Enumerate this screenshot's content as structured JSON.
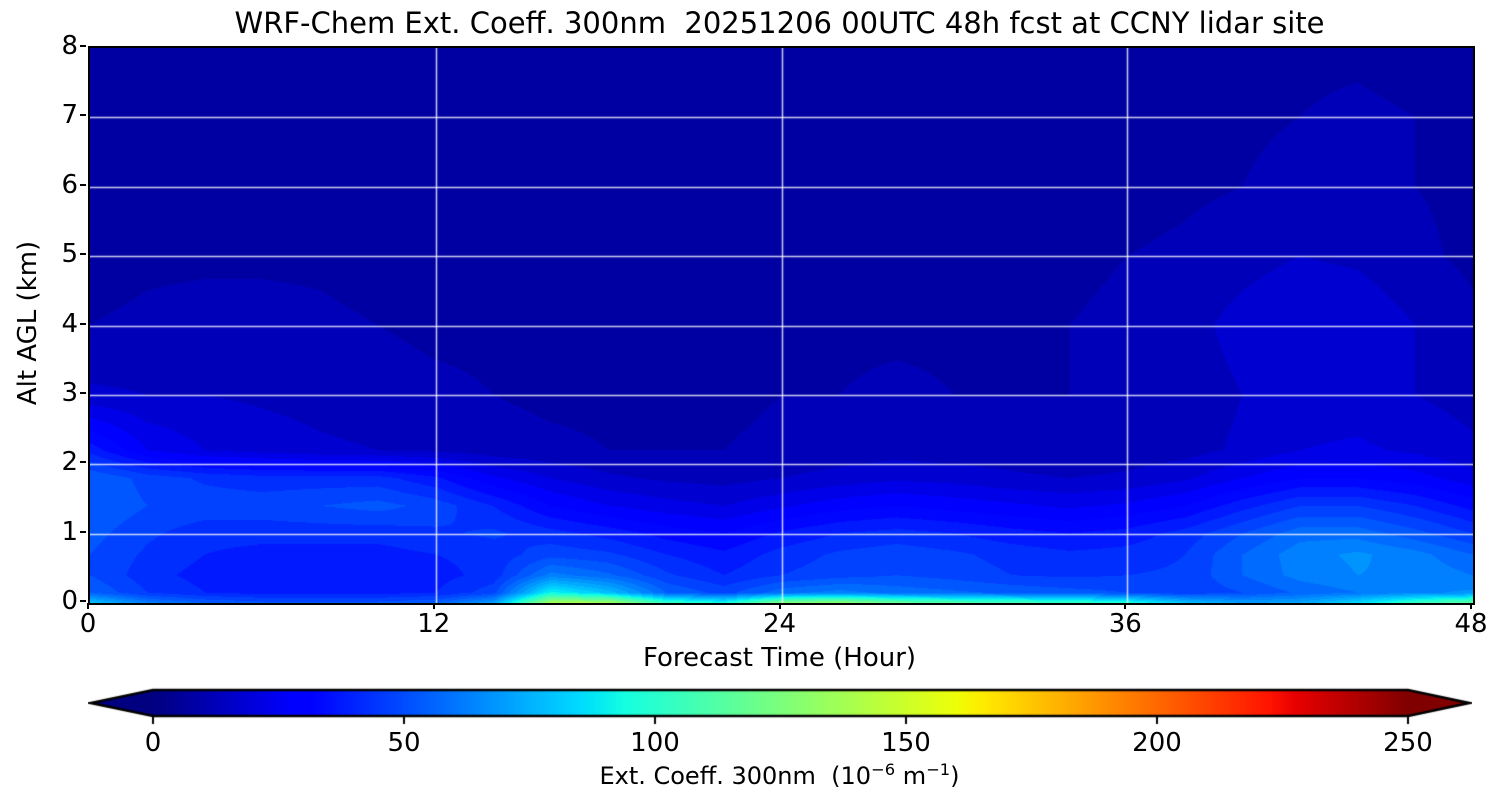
{
  "title": "WRF-Chem Ext. Coeff. 300nm  20251206 00UTC 48h fcst at CCNY lidar site",
  "axes": {
    "x": {
      "label": "Forecast Time (Hour)",
      "ticks": [
        0,
        12,
        24,
        36,
        48
      ],
      "range": [
        0,
        48
      ],
      "grid": true
    },
    "y": {
      "label": "Alt AGL (km)",
      "ticks": [
        0,
        1,
        2,
        3,
        4,
        5,
        6,
        7,
        8
      ],
      "range": [
        0,
        8
      ],
      "grid": true
    }
  },
  "colorbar": {
    "ticks": [
      0,
      50,
      100,
      150,
      200,
      250
    ],
    "range": [
      0,
      250
    ],
    "extend": "both",
    "label_prefix": "Ext. Coeff. 300nm  (10",
    "label_sup1": "−6",
    "label_mid": " m",
    "label_sup2": "−1",
    "label_suffix": ")"
  },
  "style": {
    "gridline_color": "rgba(255,255,255,0.8)",
    "spine_color": "#000000",
    "background": "#ffffff"
  },
  "chart_data": {
    "type": "heatmap",
    "colormap": "jet",
    "title": "WRF-Chem Ext. Coeff. 300nm  20251206 00UTC 48h fcst at CCNY lidar site",
    "xlabel": "Forecast Time (Hour)",
    "ylabel": "Alt AGL (km)",
    "units": "10^-6 m^-1",
    "vmin": 0,
    "vmax": 250,
    "band_step": 5,
    "x_hours": [
      0,
      2,
      4,
      6,
      8,
      10,
      12,
      14,
      16,
      18,
      20,
      22,
      24,
      26,
      28,
      30,
      32,
      34,
      36,
      38,
      40,
      42,
      44,
      46,
      48
    ],
    "alt_km": [
      0,
      0.15,
      0.4,
      0.7,
      1.0,
      1.4,
      1.8,
      2.2,
      3.0,
      4.0,
      5.0,
      6.0,
      7.0,
      8.0
    ],
    "values_by_alt": [
      [
        80,
        62,
        55,
        52,
        52,
        52,
        55,
        70,
        138,
        138,
        105,
        95,
        128,
        132,
        120,
        114,
        110,
        105,
        98,
        80,
        70,
        72,
        85,
        105,
        118
      ],
      [
        55,
        45,
        40,
        38,
        38,
        38,
        40,
        48,
        92,
        78,
        55,
        48,
        58,
        62,
        58,
        56,
        54,
        52,
        50,
        46,
        50,
        56,
        60,
        64,
        66
      ],
      [
        50,
        42,
        38,
        36,
        36,
        36,
        38,
        42,
        62,
        56,
        46,
        40,
        45,
        48,
        50,
        48,
        45,
        44,
        45,
        46,
        55,
        62,
        65,
        64,
        60
      ],
      [
        50,
        44,
        40,
        38,
        38,
        38,
        40,
        42,
        48,
        46,
        40,
        36,
        42,
        46,
        48,
        46,
        43,
        41,
        42,
        45,
        55,
        63,
        66,
        62,
        55
      ],
      [
        52,
        46,
        42,
        42,
        42,
        42,
        44,
        46,
        42,
        38,
        33,
        30,
        36,
        40,
        42,
        40,
        37,
        35,
        37,
        42,
        50,
        58,
        58,
        52,
        45
      ],
      [
        55,
        50,
        48,
        48,
        50,
        52,
        48,
        40,
        30,
        25,
        22,
        20,
        24,
        28,
        30,
        28,
        26,
        24,
        26,
        30,
        38,
        45,
        45,
        40,
        33
      ],
      [
        55,
        48,
        44,
        42,
        42,
        42,
        36,
        26,
        20,
        16,
        14,
        13,
        15,
        17,
        19,
        18,
        16,
        15,
        16,
        19,
        25,
        30,
        30,
        27,
        22
      ],
      [
        38,
        25,
        20,
        18,
        16,
        15,
        14,
        12,
        11,
        10,
        10,
        10,
        11,
        12,
        13,
        12,
        12,
        11,
        12,
        13,
        16,
        20,
        21,
        19,
        16
      ],
      [
        16,
        15,
        15,
        14,
        13,
        12,
        11,
        10,
        9,
        9,
        9,
        9,
        10,
        10,
        11,
        10,
        10,
        10,
        11,
        12,
        15,
        17,
        17,
        15,
        13
      ],
      [
        10,
        11,
        12,
        12,
        11,
        10,
        9,
        9,
        8,
        8,
        8,
        8,
        9,
        9,
        9,
        9,
        9,
        10,
        11,
        13,
        17,
        20,
        19,
        15,
        11
      ],
      [
        8,
        9,
        9,
        9,
        9,
        8,
        8,
        8,
        8,
        8,
        8,
        8,
        8,
        8,
        8,
        8,
        8,
        9,
        10,
        11,
        13,
        15,
        14,
        11,
        9
      ],
      [
        8,
        8,
        8,
        8,
        8,
        8,
        8,
        8,
        8,
        8,
        8,
        8,
        8,
        8,
        8,
        8,
        8,
        8,
        8,
        9,
        10,
        12,
        12,
        10,
        9
      ],
      [
        8,
        8,
        8,
        8,
        8,
        8,
        8,
        8,
        8,
        8,
        8,
        8,
        8,
        8,
        8,
        8,
        8,
        8,
        8,
        8,
        9,
        10,
        11,
        10,
        8
      ],
      [
        8,
        8,
        8,
        8,
        8,
        8,
        8,
        8,
        8,
        8,
        8,
        8,
        8,
        8,
        8,
        8,
        8,
        8,
        8,
        8,
        8,
        9,
        9,
        8,
        8
      ]
    ]
  }
}
